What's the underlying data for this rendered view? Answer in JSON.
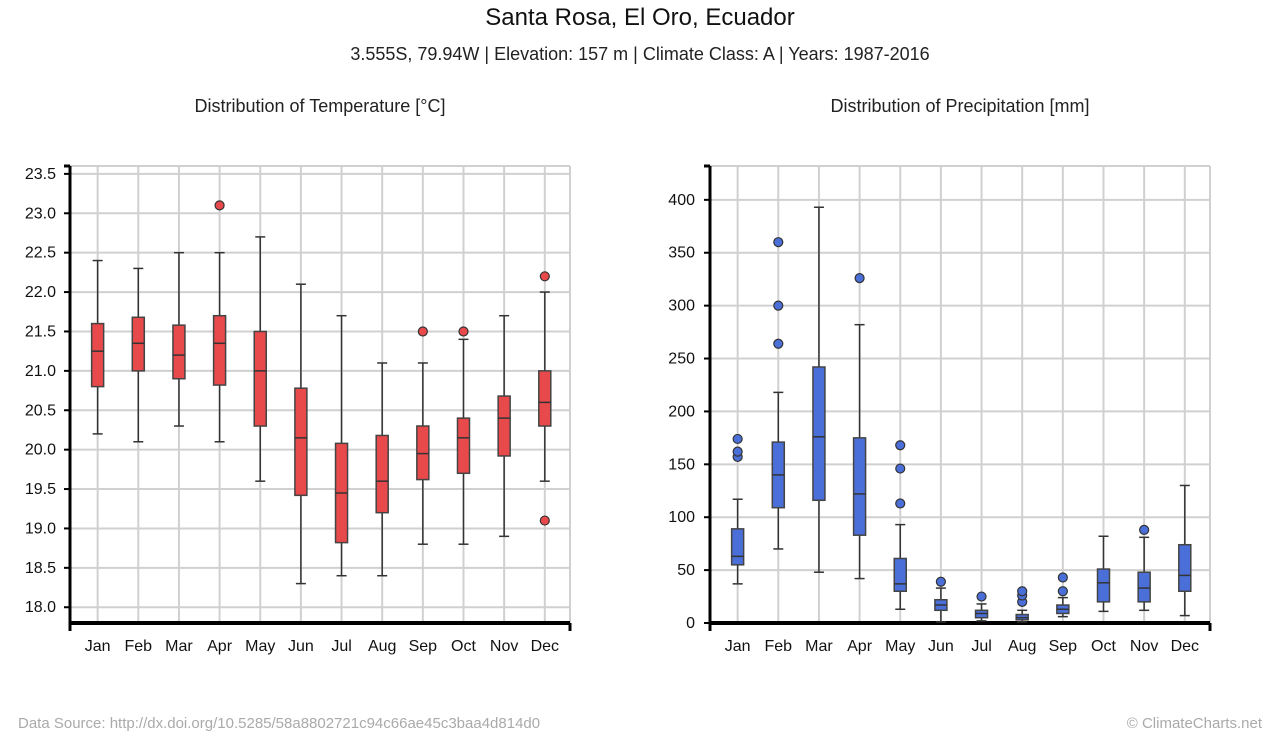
{
  "header": {
    "title": "Santa Rosa, El Oro, Ecuador",
    "subtitle": "3.555S, 79.94W | Elevation: 157 m | Climate Class: A | Years: 1987-2016"
  },
  "footer": {
    "source": "Data Source: http://dx.doi.org/10.5285/58a8802721c94c66ae45c3baa4d814d0",
    "credit": "© ClimateCharts.net"
  },
  "chart_data": [
    {
      "type": "box",
      "id": "temperature",
      "title": "Distribution of Temperature [°C]",
      "color": "#e8494a",
      "categories": [
        "Jan",
        "Feb",
        "Mar",
        "Apr",
        "May",
        "Jun",
        "Jul",
        "Aug",
        "Sep",
        "Oct",
        "Nov",
        "Dec"
      ],
      "ylim": [
        17.8,
        23.6
      ],
      "yticks": [
        18.0,
        18.5,
        19.0,
        19.5,
        20.0,
        20.5,
        21.0,
        21.5,
        22.0,
        22.5,
        23.0,
        23.5
      ],
      "ytick_labels": [
        "18.0",
        "18.5",
        "19.0",
        "19.5",
        "20.0",
        "20.5",
        "21.0",
        "21.5",
        "22.0",
        "22.5",
        "23.0",
        "23.5"
      ],
      "grid": true,
      "boxes": [
        {
          "min": 20.2,
          "q1": 20.8,
          "median": 21.25,
          "q3": 21.6,
          "max": 22.4,
          "outliers": []
        },
        {
          "min": 20.1,
          "q1": 21.0,
          "median": 21.35,
          "q3": 21.68,
          "max": 22.3,
          "outliers": []
        },
        {
          "min": 20.3,
          "q1": 20.9,
          "median": 21.2,
          "q3": 21.58,
          "max": 22.5,
          "outliers": []
        },
        {
          "min": 20.1,
          "q1": 20.82,
          "median": 21.35,
          "q3": 21.7,
          "max": 22.5,
          "outliers": [
            23.1
          ]
        },
        {
          "min": 19.6,
          "q1": 20.3,
          "median": 21.0,
          "q3": 21.5,
          "max": 22.7,
          "outliers": []
        },
        {
          "min": 18.3,
          "q1": 19.42,
          "median": 20.15,
          "q3": 20.78,
          "max": 22.1,
          "outliers": []
        },
        {
          "min": 18.4,
          "q1": 18.82,
          "median": 19.45,
          "q3": 20.08,
          "max": 21.7,
          "outliers": []
        },
        {
          "min": 18.4,
          "q1": 19.2,
          "median": 19.6,
          "q3": 20.18,
          "max": 21.1,
          "outliers": []
        },
        {
          "min": 18.8,
          "q1": 19.62,
          "median": 19.95,
          "q3": 20.3,
          "max": 21.1,
          "outliers": [
            21.5
          ]
        },
        {
          "min": 18.8,
          "q1": 19.7,
          "median": 20.15,
          "q3": 20.4,
          "max": 21.4,
          "outliers": [
            21.5
          ]
        },
        {
          "min": 18.9,
          "q1": 19.92,
          "median": 20.4,
          "q3": 20.68,
          "max": 21.7,
          "outliers": []
        },
        {
          "min": 19.6,
          "q1": 20.3,
          "median": 20.6,
          "q3": 21.0,
          "max": 22.0,
          "outliers": [
            22.2,
            19.1
          ]
        }
      ]
    },
    {
      "type": "box",
      "id": "precipitation",
      "title": "Distribution of Precipitation [mm]",
      "color": "#4a6fd8",
      "categories": [
        "Jan",
        "Feb",
        "Mar",
        "Apr",
        "May",
        "Jun",
        "Jul",
        "Aug",
        "Sep",
        "Oct",
        "Nov",
        "Dec"
      ],
      "ylim": [
        0,
        432
      ],
      "yticks": [
        0,
        50,
        100,
        150,
        200,
        250,
        300,
        350,
        400
      ],
      "ytick_labels": [
        "0",
        "50",
        "100",
        "150",
        "200",
        "250",
        "300",
        "350",
        "400"
      ],
      "grid": true,
      "boxes": [
        {
          "min": 37,
          "q1": 55,
          "median": 63,
          "q3": 89,
          "max": 117,
          "outliers": [
            157,
            162,
            174
          ]
        },
        {
          "min": 70,
          "q1": 109,
          "median": 140,
          "q3": 171,
          "max": 218,
          "outliers": [
            264,
            300,
            360
          ]
        },
        {
          "min": 48,
          "q1": 116,
          "median": 176,
          "q3": 242,
          "max": 393,
          "outliers": []
        },
        {
          "min": 42,
          "q1": 83,
          "median": 122,
          "q3": 175,
          "max": 282,
          "outliers": [
            326
          ]
        },
        {
          "min": 13,
          "q1": 30,
          "median": 37,
          "q3": 61,
          "max": 93,
          "outliers": [
            113,
            146,
            168
          ]
        },
        {
          "min": 1,
          "q1": 12,
          "median": 17,
          "q3": 22,
          "max": 33,
          "outliers": [
            39
          ]
        },
        {
          "min": 2,
          "q1": 5,
          "median": 9,
          "q3": 12,
          "max": 18,
          "outliers": [
            25
          ]
        },
        {
          "min": 1,
          "q1": 3,
          "median": 5,
          "q3": 8,
          "max": 12,
          "outliers": [
            20,
            26,
            30
          ]
        },
        {
          "min": 6,
          "q1": 9,
          "median": 13,
          "q3": 17,
          "max": 24,
          "outliers": [
            30,
            43
          ]
        },
        {
          "min": 11,
          "q1": 20,
          "median": 38,
          "q3": 51,
          "max": 82,
          "outliers": []
        },
        {
          "min": 12,
          "q1": 20,
          "median": 33,
          "q3": 48,
          "max": 81,
          "outliers": [
            88
          ]
        },
        {
          "min": 7,
          "q1": 30,
          "median": 45,
          "q3": 74,
          "max": 130,
          "outliers": []
        }
      ]
    }
  ]
}
